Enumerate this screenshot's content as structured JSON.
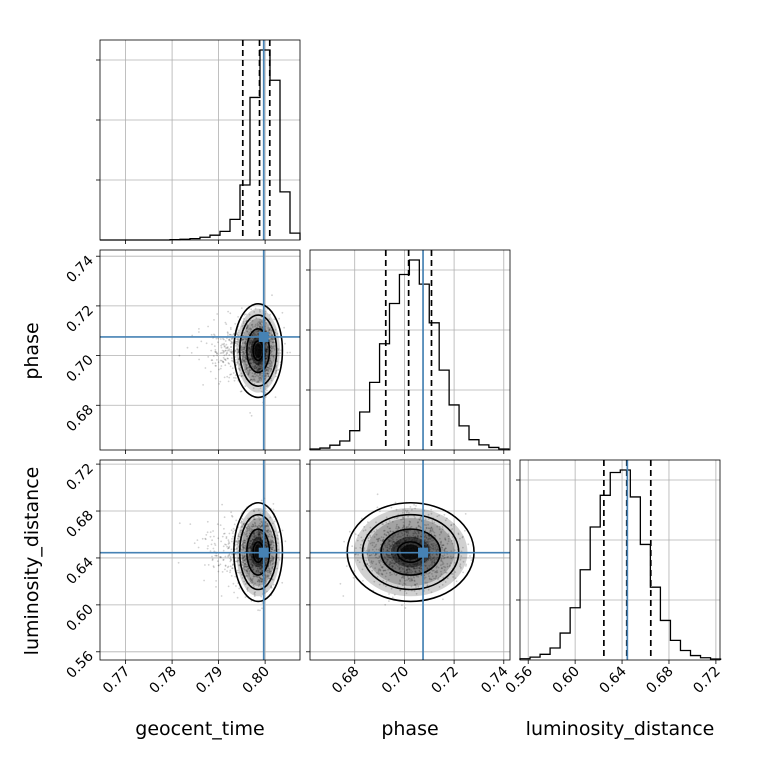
{
  "chart_data": {
    "type": "corner",
    "parameters": [
      "geocent_time",
      "phase",
      "luminosity_distance"
    ],
    "axis_labels": {
      "x": [
        "geocent_time",
        "phase",
        "luminosity_distance"
      ],
      "y": [
        "phase",
        "luminosity_distance"
      ]
    },
    "ranges": {
      "geocent_time": [
        0.7645,
        0.8075
      ],
      "phase": [
        0.662,
        0.7425
      ],
      "luminosity_distance": [
        0.553,
        0.7235
      ]
    },
    "ticks": {
      "geocent_time": [
        "0.77",
        "0.78",
        "0.79",
        "0.80"
      ],
      "phase": [
        "0.68",
        "0.70",
        "0.72",
        "0.74"
      ],
      "luminosity_distance": [
        "0.56",
        "0.60",
        "0.64",
        "0.68",
        "0.72"
      ]
    },
    "truths": {
      "geocent_time": 0.7997,
      "phase": 0.7075,
      "luminosity_distance": 0.6445
    },
    "quantiles": {
      "geocent_time": [
        0.7952,
        0.7988,
        0.801
      ],
      "phase": [
        0.6925,
        0.7017,
        0.7109
      ],
      "luminosity_distance": [
        0.6245,
        0.644,
        0.6645
      ]
    },
    "histograms": {
      "geocent_time": {
        "edges": [
          0.7645,
          0.76665,
          0.7688,
          0.77095,
          0.7731,
          0.77525,
          0.7774,
          0.77955,
          0.7817,
          0.78385,
          0.786,
          0.78815,
          0.7903,
          0.79245,
          0.7946,
          0.79675,
          0.7989,
          0.80105,
          0.8032,
          0.80535,
          0.8075
        ],
        "counts": [
          0,
          0,
          0,
          0,
          0,
          0,
          0,
          1,
          2,
          4,
          8,
          14,
          25,
          60,
          160,
          415,
          553,
          465,
          140,
          20
        ]
      },
      "phase": {
        "edges": [
          0.662,
          0.666,
          0.67,
          0.674,
          0.678,
          0.682,
          0.686,
          0.69,
          0.694,
          0.698,
          0.702,
          0.706,
          0.71,
          0.714,
          0.718,
          0.722,
          0.726,
          0.73,
          0.734,
          0.738,
          0.742
        ],
        "counts": [
          3,
          6,
          15,
          28,
          60,
          118,
          210,
          330,
          455,
          545,
          590,
          515,
          395,
          248,
          140,
          75,
          32,
          16,
          8,
          3
        ]
      },
      "luminosity_distance": {
        "edges": [
          0.553,
          0.56155,
          0.5701,
          0.57865,
          0.5872,
          0.59575,
          0.6043,
          0.61285,
          0.6214,
          0.62995,
          0.6385,
          0.64705,
          0.6556,
          0.66415,
          0.6727,
          0.68125,
          0.6898,
          0.69835,
          0.7069,
          0.71545,
          0.724
        ],
        "counts": [
          4,
          9,
          18,
          38,
          85,
          165,
          285,
          420,
          520,
          592,
          600,
          515,
          365,
          230,
          125,
          62,
          30,
          14,
          7,
          3
        ]
      }
    },
    "density": {
      "phase_vs_geocent_time": {
        "x_center": 0.7985,
        "y_center": 0.702,
        "x_scale": 0.0018,
        "y_scale": 0.0065,
        "x_skew": "left"
      },
      "luminosity_distance_vs_geocent_time": {
        "x_center": 0.7985,
        "y_center": 0.645,
        "x_scale": 0.0018,
        "y_scale": 0.0145,
        "x_skew": "left"
      },
      "luminosity_distance_vs_phase": {
        "x_center": 0.7025,
        "y_center": 0.645,
        "x_scale": 0.0088,
        "y_scale": 0.0145
      }
    }
  }
}
